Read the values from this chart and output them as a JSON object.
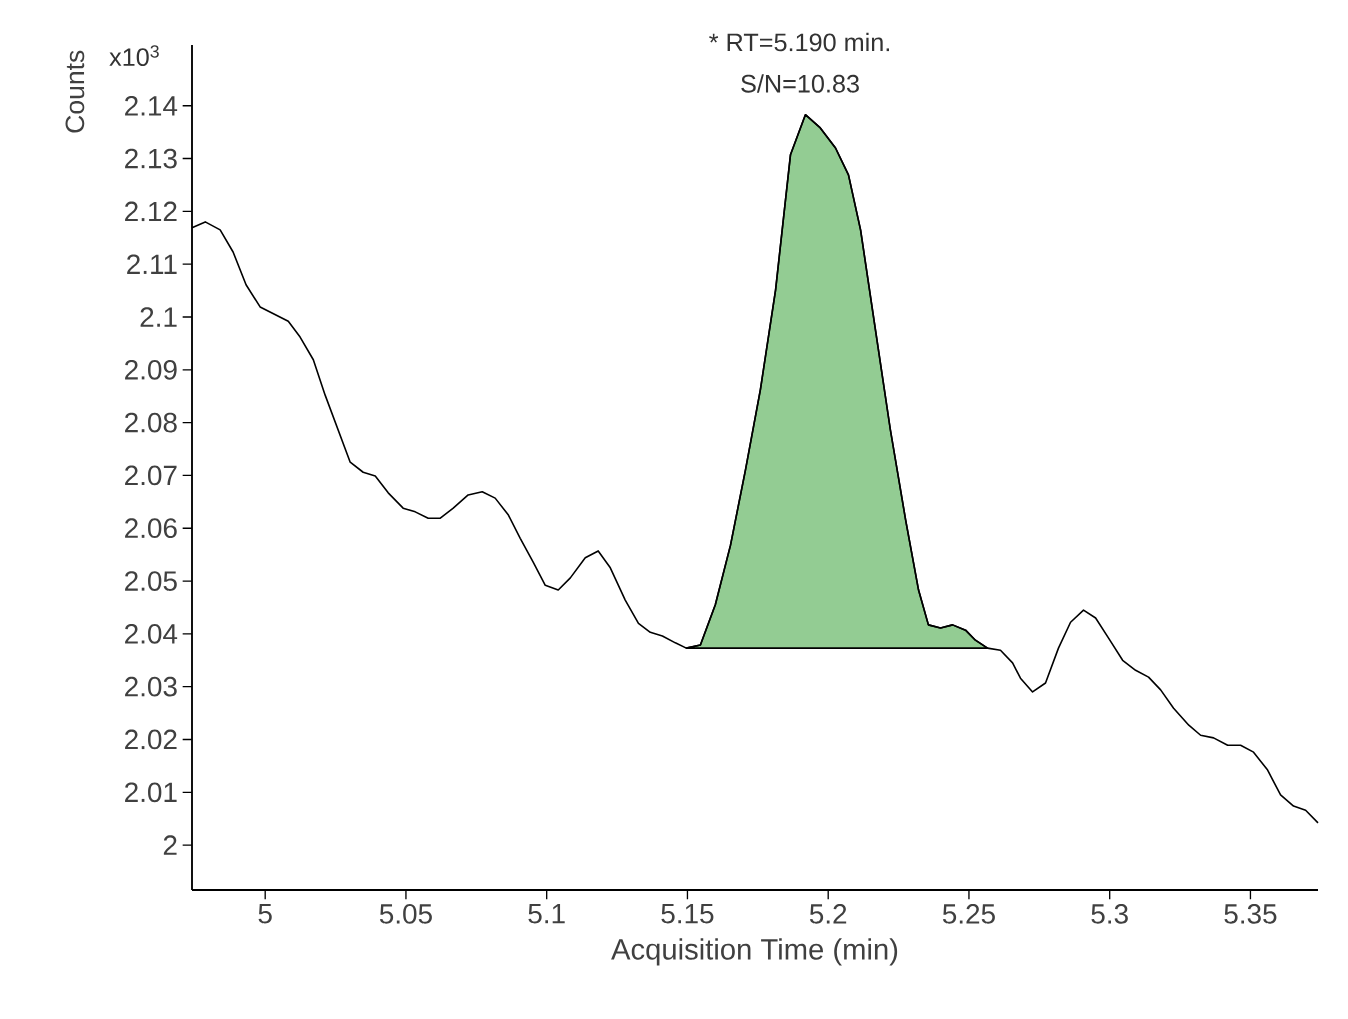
{
  "chart_data": {
    "type": "line",
    "xlabel": "Acquisition Time (min)",
    "ylabel": "Counts",
    "annotations": [
      "x10$^{3}$",
      {
        "text": "* RT=5.190 min.",
        "x": 5.19,
        "y": 2.1383
      },
      {
        "text": "S/N=10.83",
        "x": 5.19,
        "y": 2.1383
      }
    ],
    "xlim": [
      4.974,
      5.374
    ],
    "ylim": [
      1.9915,
      2.1515
    ],
    "xticks": [
      5,
      5.05,
      5.1,
      5.15,
      5.2,
      5.25,
      5.3,
      5.35
    ],
    "yticks": [
      2,
      2.01,
      2.02,
      2.03,
      2.04,
      2.05,
      2.06,
      2.07,
      2.08,
      2.09,
      2.1,
      2.11,
      2.12,
      2.13,
      2.14
    ],
    "grid": false,
    "series": [
      {
        "type": "area",
        "color": "#93cc93",
        "x": [
          5.1496,
          5.1546,
          5.1599,
          5.1653,
          5.1706,
          5.1759,
          5.1813,
          5.1866,
          5.1919,
          5.1972,
          5.2026,
          5.2072,
          5.2115,
          5.2168,
          5.2221,
          5.2275,
          5.2321,
          5.2356,
          5.2399,
          5.2442,
          5.2488,
          5.2523,
          5.2566
        ],
        "values": [
          2.0373,
          2.0379,
          2.0455,
          2.0568,
          2.071,
          2.0862,
          2.1051,
          2.1307,
          2.1383,
          2.1358,
          2.132,
          2.1269,
          2.1165,
          2.0975,
          2.0786,
          2.0616,
          2.0483,
          2.0417,
          2.0411,
          2.0417,
          2.0407,
          2.0388,
          2.0373
        ]
      },
      {
        "type": "line",
        "color": "#000000",
        "x": [
          4.974,
          4.9787,
          4.984,
          4.9886,
          4.9932,
          4.9982,
          5.0082,
          5.0124,
          5.0171,
          5.0213,
          5.0302,
          5.0348,
          5.0391,
          5.0437,
          5.049,
          5.0533,
          5.0579,
          5.0622,
          5.0668,
          5.0721,
          5.0771,
          5.0817,
          5.0864,
          5.0906,
          5.0952,
          5.0995,
          5.1041,
          5.1084,
          5.1137,
          5.1183,
          5.1226,
          5.1279,
          5.1326,
          5.1368,
          5.1411,
          5.1457,
          5.1496,
          5.1546,
          5.1599,
          5.1653,
          5.1706,
          5.1759,
          5.1813,
          5.1866,
          5.1919,
          5.1972,
          5.2026,
          5.2072,
          5.2115,
          5.2168,
          5.2221,
          5.2275,
          5.2321,
          5.2356,
          5.2399,
          5.2442,
          5.2488,
          5.2523,
          5.2566,
          5.2612,
          5.2655,
          5.2683,
          5.2726,
          5.2772,
          5.2818,
          5.2861,
          5.2907,
          5.295,
          5.2996,
          5.3046,
          5.3092,
          5.3138,
          5.3181,
          5.3227,
          5.3281,
          5.3323,
          5.3369,
          5.3419,
          5.3465,
          5.3511,
          5.3561,
          5.3607,
          5.3653,
          5.3696,
          5.374
        ],
        "values": [
          2.1169,
          2.118,
          2.1165,
          2.1123,
          2.1061,
          2.1019,
          2.0992,
          2.0962,
          2.0919,
          2.0852,
          2.0725,
          2.0706,
          2.0699,
          2.0667,
          2.0638,
          2.0631,
          2.0619,
          2.0619,
          2.0638,
          2.0663,
          2.0669,
          2.0657,
          2.0625,
          2.0581,
          2.0536,
          2.0492,
          2.0483,
          2.0506,
          2.0544,
          2.0557,
          2.0525,
          2.0464,
          2.042,
          2.0403,
          2.0396,
          2.0383,
          2.0373,
          2.0379,
          2.0455,
          2.0568,
          2.071,
          2.0862,
          2.1051,
          2.1307,
          2.1383,
          2.1358,
          2.132,
          2.1269,
          2.1165,
          2.0975,
          2.0786,
          2.0616,
          2.0483,
          2.0417,
          2.0411,
          2.0417,
          2.0407,
          2.0388,
          2.0373,
          2.0369,
          2.0345,
          2.0316,
          2.029,
          2.0307,
          2.0373,
          2.0422,
          2.0445,
          2.043,
          2.0392,
          2.035,
          2.0331,
          2.0318,
          2.0294,
          2.0259,
          2.0227,
          2.0208,
          2.0203,
          2.0189,
          2.0189,
          2.0176,
          2.0142,
          2.0095,
          2.0074,
          2.0066,
          2.0042
        ]
      }
    ]
  }
}
